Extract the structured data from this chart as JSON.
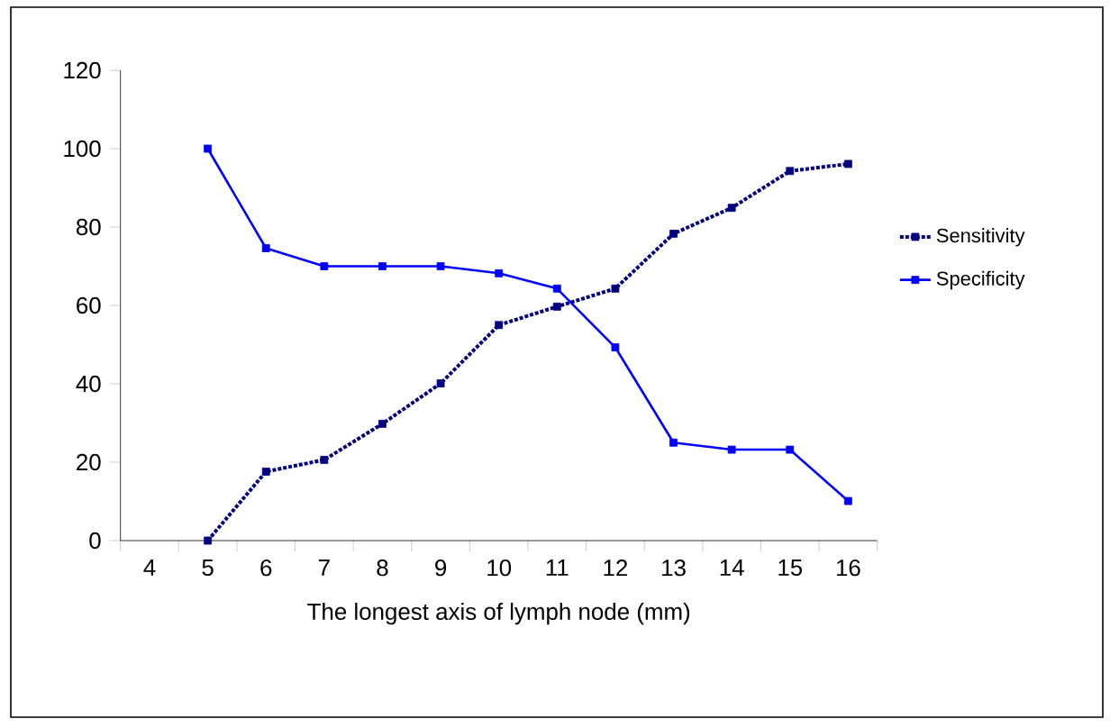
{
  "chart_data": {
    "type": "line",
    "xlabel": "The longest axis of lymph node  (mm)",
    "categories": [
      "4",
      "5",
      "6",
      "7",
      "8",
      "9",
      "10",
      "11",
      "12",
      "13",
      "14",
      "15",
      "16"
    ],
    "series": [
      {
        "name": "Sensitivity",
        "color": "#000080",
        "line_style": "dotted",
        "values": [
          null,
          0,
          17.6,
          20.6,
          29.8,
          40.1,
          55,
          59.7,
          64.3,
          78.3,
          84.9,
          94.3,
          96.1
        ]
      },
      {
        "name": "Specificity",
        "color": "#0000ff",
        "line_style": "solid",
        "values": [
          null,
          100,
          74.6,
          70,
          70,
          70,
          68.2,
          64.3,
          49.3,
          25,
          23.2,
          23.2,
          10.1
        ]
      }
    ],
    "ylim": [
      0,
      120
    ],
    "yticks": [
      0,
      20,
      40,
      60,
      80,
      100,
      120
    ],
    "marker": "square",
    "legend": "right",
    "grid": false
  }
}
